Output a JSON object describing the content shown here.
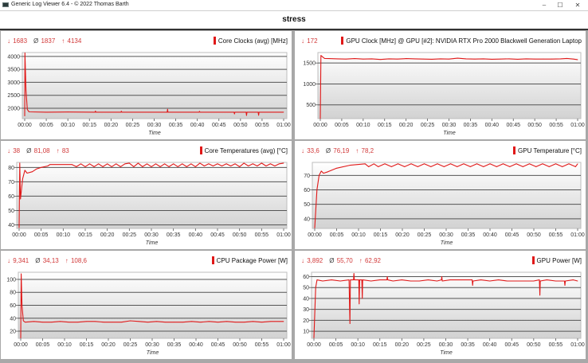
{
  "window": {
    "title": "Generic Log Viewer 6.4 - © 2022 Thomas Barth",
    "minimize": "–",
    "maximize": "☐",
    "close": "✕"
  },
  "header": {
    "title": "stress"
  },
  "colors": {
    "series": "#e01818",
    "stats": "#d23a3a",
    "grid": "#555555"
  },
  "chart_data": [
    {
      "type": "line",
      "title": "Core Clocks (avg) [MHz]",
      "stats": {
        "min": "1683",
        "avg": "1837",
        "max": "4134"
      },
      "xlabel": "Time",
      "x_ticks": [
        "00:00",
        "00:05",
        "00:10",
        "00:15",
        "00:20",
        "00:25",
        "00:30",
        "00:35",
        "00:40",
        "00:45",
        "00:50",
        "00:55",
        "01:00"
      ],
      "xlim_minutes": [
        0,
        60
      ],
      "y_ticks": [
        2000,
        2500,
        3000,
        3500,
        4000
      ],
      "ylim": [
        1600,
        4150
      ],
      "grid": true,
      "x": [
        0,
        0.05,
        0.3,
        0.6,
        1,
        5,
        10,
        16.3,
        16.4,
        16.5,
        22.3,
        22.4,
        22.5,
        33,
        33.1,
        33.2,
        40.4,
        40.5,
        40.6,
        48.5,
        48.6,
        48.7,
        51.3,
        51.4,
        51.5,
        54.1,
        54.2,
        54.3,
        60
      ],
      "y": [
        1700,
        4134,
        2700,
        1950,
        1860,
        1850,
        1855,
        1850,
        1890,
        1850,
        1850,
        1885,
        1850,
        1850,
        1960,
        1850,
        1850,
        1880,
        1850,
        1850,
        1780,
        1850,
        1850,
        1720,
        1850,
        1850,
        1730,
        1850,
        1850
      ]
    },
    {
      "type": "line",
      "title": "GPU Clock [MHz] @ GPU [#2]: NVIDIA RTX Pro 2000 Blackwell Generation Laptop",
      "stats": {
        "min": "172"
      },
      "xlabel": "Time",
      "x_ticks": [
        "00:00",
        "00:05",
        "00:10",
        "00:15",
        "00:20",
        "00:25",
        "00:30",
        "00:35",
        "00:40",
        "00:45",
        "00:50",
        "00:55",
        "01:00"
      ],
      "xlim_minutes": [
        0,
        60
      ],
      "y_ticks": [
        500,
        1000,
        1500
      ],
      "ylim": [
        172,
        1750
      ],
      "grid": true,
      "x": [
        0,
        0.15,
        0.5,
        1,
        2,
        4,
        6,
        8,
        10,
        12,
        14,
        16,
        18,
        20,
        22,
        24,
        26,
        28,
        30,
        32,
        34,
        36,
        38,
        40,
        42,
        44,
        46,
        48,
        50,
        52,
        54,
        56,
        57.5,
        59,
        60
      ],
      "y": [
        172,
        1680,
        1650,
        1610,
        1605,
        1600,
        1595,
        1605,
        1595,
        1600,
        1585,
        1600,
        1595,
        1605,
        1600,
        1595,
        1590,
        1600,
        1595,
        1615,
        1600,
        1595,
        1600,
        1590,
        1595,
        1600,
        1590,
        1600,
        1595,
        1595,
        1595,
        1600,
        1610,
        1595,
        1580
      ]
    },
    {
      "type": "line",
      "title": "Core Temperatures (avg) [°C]",
      "stats": {
        "min": "38",
        "avg": "81,08",
        "max": "83"
      },
      "xlabel": "Time",
      "x_ticks": [
        "00:00",
        "00:05",
        "00:10",
        "00:15",
        "00:20",
        "00:25",
        "00:30",
        "00:35",
        "00:40",
        "00:45",
        "00:50",
        "00:55",
        "01:00"
      ],
      "xlim_minutes": [
        0,
        60
      ],
      "y_ticks": [
        40,
        50,
        60,
        70,
        80
      ],
      "ylim": [
        37.5,
        83.5
      ],
      "grid": true,
      "x": [
        0,
        0.15,
        0.3,
        0.8,
        1.3,
        1.8,
        3,
        4,
        5,
        6.5,
        7,
        12,
        13,
        14,
        15,
        16,
        17,
        18,
        19,
        20,
        21,
        22,
        23,
        24,
        25,
        26,
        27,
        28,
        29,
        30,
        31,
        32,
        33,
        34,
        35,
        36,
        37,
        38,
        39,
        40,
        41,
        42,
        43,
        44,
        45,
        46,
        47,
        48,
        49,
        50,
        51,
        52,
        53,
        54,
        55,
        56,
        57,
        58,
        59,
        60
      ],
      "y": [
        38,
        83,
        58,
        72,
        78,
        76,
        77,
        79,
        80,
        81,
        82,
        82,
        80.5,
        82.5,
        80.5,
        82.5,
        80.5,
        82.5,
        80.5,
        82.5,
        80.5,
        82.5,
        80.5,
        82.5,
        83,
        80.5,
        83,
        80.5,
        82.5,
        80.5,
        82.5,
        80.5,
        82.5,
        80.5,
        82.5,
        80.5,
        82.5,
        80.5,
        82.5,
        80.5,
        83,
        81,
        82.5,
        81,
        82.5,
        81,
        82.5,
        81,
        82.5,
        80.5,
        83,
        81,
        82.5,
        81,
        83,
        81,
        82.5,
        81,
        82.5,
        83
      ]
    },
    {
      "type": "line",
      "title": "GPU Temperature [°C]",
      "stats": {
        "min": "33,6",
        "avg": "76,19",
        "max": "78,2"
      },
      "xlabel": "Time",
      "x_ticks": [
        "00:00",
        "00:05",
        "00:10",
        "00:15",
        "00:20",
        "00:25",
        "00:30",
        "00:35",
        "00:40",
        "00:45",
        "00:50",
        "00:55",
        "01:00"
      ],
      "xlim_minutes": [
        0,
        60
      ],
      "y_ticks": [
        40,
        50,
        60,
        70
      ],
      "ylim": [
        33.3,
        79
      ],
      "grid": true,
      "x": [
        0,
        0.5,
        1,
        1.5,
        2,
        3,
        5,
        8,
        11.5,
        12.3,
        13.5,
        14.5,
        16,
        17.5,
        19,
        20.5,
        22,
        23.5,
        25,
        26.5,
        28,
        29.5,
        31,
        32.5,
        34,
        35.5,
        37,
        38.5,
        40,
        41.5,
        43,
        44.5,
        46,
        47.5,
        49,
        50.5,
        52,
        53.5,
        55,
        56.5,
        58,
        59.5,
        60
      ],
      "y": [
        33.6,
        60,
        70,
        73,
        71.5,
        72.5,
        75,
        77,
        78,
        76,
        78,
        76,
        78,
        76,
        78,
        76,
        78,
        76,
        78,
        76,
        78,
        76,
        78,
        76,
        78,
        76,
        78,
        76,
        78,
        76,
        78,
        76,
        78,
        76,
        78,
        76,
        78,
        76,
        78,
        76,
        78,
        76,
        78
      ]
    },
    {
      "type": "line",
      "title": "CPU Package Power [W]",
      "stats": {
        "min": "9,341",
        "avg": "34,13",
        "max": "108,6"
      },
      "xlabel": "Time",
      "x_ticks": [
        "00:00",
        "00:05",
        "00:10",
        "00:15",
        "00:20",
        "00:25",
        "00:30",
        "00:35",
        "00:40",
        "00:45",
        "00:50",
        "00:55",
        "01:00"
      ],
      "xlim_minutes": [
        0,
        60
      ],
      "y_ticks": [
        20,
        40,
        60,
        80,
        100
      ],
      "ylim": [
        9,
        111
      ],
      "grid": true,
      "x": [
        0,
        0.1,
        0.3,
        0.6,
        1,
        3,
        5,
        7,
        9,
        11,
        13,
        15,
        17,
        19,
        21,
        23,
        25,
        27,
        29,
        31,
        33,
        35,
        37,
        39,
        41,
        43,
        45,
        47,
        49,
        51,
        53,
        55,
        57,
        59,
        60
      ],
      "y": [
        9.3,
        108.6,
        60,
        36,
        34,
        35,
        34,
        34,
        35,
        34,
        34,
        35,
        35,
        34,
        34,
        34,
        36,
        35,
        34,
        35,
        34,
        34,
        34,
        35,
        34,
        35,
        34,
        35,
        34,
        34,
        35,
        34,
        35,
        35,
        35
      ]
    },
    {
      "type": "line",
      "title": "GPU Power [W]",
      "stats": {
        "min": "3,892",
        "avg": "55,70",
        "max": "62,92"
      },
      "xlabel": "Time",
      "x_ticks": [
        "00:00",
        "00:05",
        "00:10",
        "00:15",
        "00:20",
        "00:25",
        "00:30",
        "00:35",
        "00:40",
        "00:45",
        "00:50",
        "00:55",
        "01:00"
      ],
      "xlim_minutes": [
        0,
        60
      ],
      "y_ticks": [
        10,
        20,
        30,
        40,
        50,
        60
      ],
      "ylim": [
        3.5,
        64
      ],
      "grid": true,
      "x": [
        0,
        0.4,
        0.7,
        2,
        4,
        6,
        8,
        8.2,
        8.3,
        9,
        9.1,
        9.2,
        10.2,
        10.3,
        10.4,
        10.9,
        11,
        11.1,
        13,
        15,
        16.6,
        16.7,
        16.8,
        18,
        20,
        22,
        24,
        26,
        28,
        29,
        29.1,
        29.2,
        31,
        33,
        36,
        36.1,
        36.2,
        38,
        40,
        42,
        44,
        46,
        48,
        50,
        51.3,
        51.4,
        51.5,
        53,
        55,
        57,
        57.1,
        57.2,
        59,
        60
      ],
      "y": [
        3.9,
        50,
        57,
        56,
        57,
        56,
        57,
        17,
        57,
        57,
        62.9,
        57,
        57,
        35,
        57,
        57,
        40,
        57,
        56,
        57,
        57,
        60,
        57,
        56,
        57,
        56,
        56,
        57,
        56,
        57,
        60,
        56,
        57,
        57,
        57,
        52,
        56,
        57,
        56,
        57,
        56,
        56,
        56,
        56,
        57,
        43,
        56,
        57,
        56,
        56,
        52,
        56,
        57,
        56
      ]
    }
  ]
}
